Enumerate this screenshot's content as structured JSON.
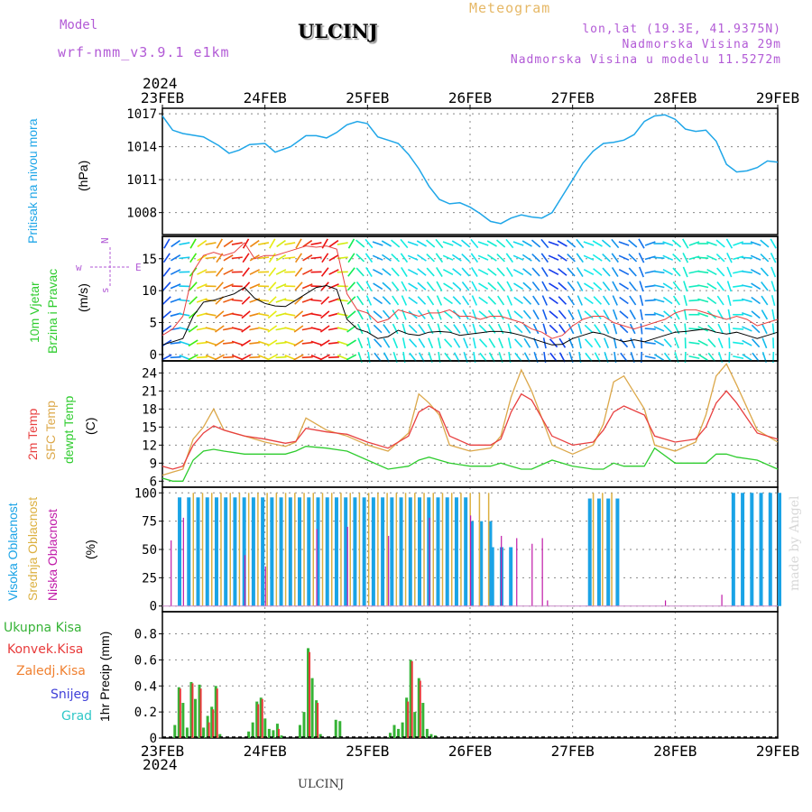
{
  "header": {
    "model_label": "Model",
    "model_value": "wrf-nmm_v3.9.1 e1km",
    "title": "ULCINJ",
    "subtitle": "Meteogram",
    "coords": "lon,lat (19.3E, 41.9375N)",
    "altitude": "Nadmorska Visina 29m",
    "model_altitude": "Nadmorska Visina u modelu 11.5272m"
  },
  "footer": {
    "station": "ULCINJ",
    "credit": "made by Angel"
  },
  "colors": {
    "pressure": "#1fa6e8",
    "temp": "#e84040",
    "sfc_temp": "#dca84a",
    "dewpt": "#2ecc2e",
    "cloud_high": "#1aa3e6",
    "cloud_mid": "#dcb040",
    "cloud_low": "#c01aa8",
    "precip_total": "#36b336",
    "precip_conv": "#e83a3a",
    "wind_speed": "#000000",
    "gust": "#e84040"
  },
  "chart_data": [
    {
      "type": "line",
      "panel": "pressure",
      "ylabel_left": "Pritisak na nivou mora",
      "ylabel": "(hPa)",
      "x_ticks": [
        "23FEB",
        "24FEB",
        "25FEB",
        "26FEB",
        "27FEB",
        "28FEB",
        "29FEB"
      ],
      "x_year": "2024",
      "y_ticks": [
        1008,
        1011,
        1014,
        1017
      ],
      "ylim": [
        1006,
        1017.5
      ],
      "xlim": [
        0,
        6
      ],
      "grid": true,
      "series": [
        {
          "x": [
            0,
            0.1,
            0.2,
            0.4,
            0.55,
            0.65,
            0.75,
            0.85,
            1.0,
            1.1,
            1.25,
            1.4,
            1.5,
            1.6,
            1.7,
            1.8,
            1.9,
            2.0,
            2.1,
            2.2,
            2.3,
            2.4,
            2.5,
            2.6,
            2.7,
            2.8,
            2.9,
            3.0,
            3.1,
            3.2,
            3.3,
            3.4,
            3.5,
            3.6,
            3.7,
            3.8,
            3.9,
            4.0,
            4.1,
            4.2,
            4.3,
            4.4,
            4.5,
            4.6,
            4.7,
            4.8,
            4.9,
            5.0,
            5.1,
            5.2,
            5.3,
            5.4,
            5.5,
            5.6,
            5.7,
            5.8,
            5.9,
            6.0
          ],
          "y": [
            1016.8,
            1015.5,
            1015.2,
            1014.9,
            1014.1,
            1013.4,
            1013.7,
            1014.2,
            1014.3,
            1013.5,
            1014.0,
            1015.0,
            1015.0,
            1014.8,
            1015.3,
            1016.0,
            1016.3,
            1016.1,
            1014.9,
            1014.6,
            1014.3,
            1013.3,
            1012.0,
            1010.4,
            1009.2,
            1008.8,
            1008.9,
            1008.5,
            1007.9,
            1007.2,
            1007.0,
            1007.5,
            1007.8,
            1007.6,
            1007.5,
            1008.0,
            1009.5,
            1011.0,
            1012.5,
            1013.6,
            1014.3,
            1014.4,
            1014.6,
            1015.1,
            1016.3,
            1016.8,
            1016.9,
            1016.5,
            1015.6,
            1015.4,
            1015.5,
            1014.5,
            1012.4,
            1011.7,
            1011.8,
            1012.1,
            1012.7,
            1012.6
          ]
        }
      ]
    },
    {
      "type": "line",
      "panel": "wind",
      "ylabel_left": "10m Vjetar",
      "ylabel_left2": "Brzina i Pravac",
      "ylabel": "(m/s)",
      "compass": {
        "n": "N",
        "e": "E",
        "w": "w",
        "s": "s"
      },
      "y_ticks": [
        0,
        5,
        10,
        15
      ],
      "ylim": [
        -1,
        18.5
      ],
      "xlim": [
        0,
        6
      ],
      "grid": true,
      "series": [
        {
          "name": "speed",
          "x": [
            0,
            0.1,
            0.2,
            0.3,
            0.4,
            0.5,
            0.6,
            0.7,
            0.8,
            0.9,
            1.0,
            1.1,
            1.2,
            1.3,
            1.4,
            1.5,
            1.6,
            1.7,
            1.8,
            1.9,
            2.0,
            2.1,
            2.2,
            2.3,
            2.4,
            2.5,
            2.6,
            2.7,
            2.8,
            2.9,
            3.0,
            3.1,
            3.2,
            3.3,
            3.4,
            3.5,
            3.6,
            3.7,
            3.8,
            3.9,
            4.0,
            4.1,
            4.2,
            4.3,
            4.4,
            4.5,
            4.6,
            4.7,
            4.8,
            4.9,
            5.0,
            5.1,
            5.2,
            5.3,
            5.4,
            5.5,
            5.6,
            5.7,
            5.8,
            5.9,
            6.0
          ],
          "y": [
            1.5,
            2.0,
            2.5,
            6.0,
            8.2,
            8.5,
            9.0,
            9.5,
            10.5,
            8.8,
            8.0,
            7.6,
            7.5,
            8.5,
            9.5,
            10.5,
            10.8,
            10.2,
            5.5,
            4.0,
            3.5,
            2.5,
            2.8,
            3.8,
            3.2,
            3.0,
            3.5,
            3.6,
            3.5,
            3.0,
            3.2,
            3.4,
            3.6,
            3.6,
            3.4,
            3.0,
            2.5,
            2.0,
            1.5,
            1.6,
            2.5,
            3.0,
            3.5,
            3.2,
            2.5,
            2.0,
            2.3,
            2.0,
            2.5,
            3.0,
            3.5,
            3.6,
            3.8,
            4.0,
            3.5,
            3.2,
            3.5,
            3.0,
            2.5,
            3.0,
            3.5
          ]
        },
        {
          "name": "gust",
          "x": [
            0,
            0.1,
            0.2,
            0.3,
            0.4,
            0.5,
            0.6,
            0.7,
            0.8,
            0.9,
            1.0,
            1.1,
            1.2,
            1.3,
            1.4,
            1.5,
            1.6,
            1.7,
            1.8,
            1.9,
            2.0,
            2.1,
            2.2,
            2.3,
            2.4,
            2.5,
            2.6,
            2.7,
            2.8,
            2.9,
            3.0,
            3.1,
            3.2,
            3.3,
            3.4,
            3.5,
            3.6,
            3.7,
            3.8,
            3.9,
            4.0,
            4.1,
            4.2,
            4.3,
            4.4,
            4.5,
            4.6,
            4.7,
            4.8,
            4.9,
            5.0,
            5.1,
            5.2,
            5.3,
            5.4,
            5.5,
            5.6,
            5.7,
            5.8,
            5.9,
            6.0
          ],
          "y": [
            3,
            4,
            6,
            13,
            15.5,
            16,
            15.5,
            16,
            17.5,
            15,
            15.5,
            15.5,
            16,
            16.5,
            17,
            16.8,
            17.0,
            16.5,
            9.5,
            7.0,
            6.5,
            5.0,
            5.5,
            7.0,
            6.5,
            6.0,
            6.5,
            6.5,
            7.0,
            6.0,
            6.0,
            5.5,
            6.0,
            6.0,
            5.5,
            5.0,
            4.0,
            3.5,
            2.5,
            3.0,
            4.5,
            5.5,
            6.0,
            6.0,
            5.0,
            4.5,
            4.0,
            4.5,
            5.0,
            5.5,
            6.5,
            7.0,
            7.0,
            6.5,
            6.0,
            5.5,
            6.0,
            5.5,
            4.5,
            5.0,
            5.5
          ]
        }
      ]
    },
    {
      "type": "line",
      "panel": "temperature",
      "ylabel_left": "2m Temp",
      "ylabel_left2": "SFC Temp",
      "ylabel_left3": "dewpt Temp",
      "ylabel": "(C)",
      "y_ticks": [
        6,
        9,
        12,
        15,
        18,
        21,
        24
      ],
      "ylim": [
        5,
        26
      ],
      "xlim": [
        0,
        6
      ],
      "grid": true,
      "series": [
        {
          "name": "2m Temp",
          "x": [
            0,
            0.1,
            0.2,
            0.3,
            0.4,
            0.5,
            0.6,
            0.8,
            1.0,
            1.2,
            1.3,
            1.4,
            1.6,
            1.8,
            2.0,
            2.2,
            2.4,
            2.5,
            2.6,
            2.7,
            2.8,
            3.0,
            3.2,
            3.3,
            3.4,
            3.5,
            3.6,
            3.8,
            4.0,
            4.2,
            4.3,
            4.4,
            4.5,
            4.7,
            4.8,
            5.0,
            5.2,
            5.3,
            5.4,
            5.5,
            5.6,
            5.8,
            6.0
          ],
          "y": [
            8.5,
            8.0,
            8.5,
            12.0,
            14.0,
            15.2,
            14.5,
            13.5,
            13.0,
            12.3,
            12.6,
            14.8,
            14.2,
            13.8,
            12.5,
            11.5,
            13.5,
            17.5,
            18.5,
            17.5,
            13.5,
            12.0,
            12.0,
            13.0,
            17.5,
            20.5,
            19.5,
            13.5,
            12.0,
            12.5,
            14.5,
            17.5,
            18.5,
            17.0,
            13.5,
            12.5,
            13.0,
            15.0,
            19.0,
            21.0,
            19.0,
            14.0,
            13.0
          ]
        },
        {
          "name": "SFC Temp",
          "x": [
            0,
            0.1,
            0.2,
            0.3,
            0.4,
            0.5,
            0.6,
            0.8,
            1.0,
            1.2,
            1.3,
            1.4,
            1.6,
            1.8,
            2.0,
            2.2,
            2.4,
            2.5,
            2.6,
            2.7,
            2.8,
            3.0,
            3.2,
            3.3,
            3.4,
            3.5,
            3.6,
            3.8,
            4.0,
            4.2,
            4.3,
            4.4,
            4.5,
            4.7,
            4.8,
            5.0,
            5.2,
            5.3,
            5.4,
            5.5,
            5.6,
            5.8,
            6.0
          ],
          "y": [
            7.0,
            7.5,
            8.0,
            13.0,
            15.0,
            18.0,
            14.5,
            13.5,
            12.5,
            11.8,
            12.5,
            16.5,
            14.5,
            13.5,
            12.0,
            11.0,
            14.0,
            20.5,
            19.0,
            17.0,
            12.0,
            11.0,
            11.5,
            13.5,
            20.0,
            24.5,
            21.0,
            12.0,
            10.5,
            12.0,
            15.5,
            22.5,
            23.5,
            18.0,
            12.0,
            11.0,
            12.5,
            17.0,
            23.5,
            25.5,
            22.0,
            14.5,
            12.5
          ]
        },
        {
          "name": "dewpt Temp",
          "x": [
            0,
            0.1,
            0.2,
            0.3,
            0.4,
            0.5,
            0.6,
            0.8,
            1.0,
            1.2,
            1.3,
            1.4,
            1.6,
            1.8,
            2.0,
            2.2,
            2.4,
            2.5,
            2.6,
            2.7,
            2.8,
            3.0,
            3.2,
            3.3,
            3.4,
            3.5,
            3.6,
            3.8,
            4.0,
            4.2,
            4.3,
            4.4,
            4.5,
            4.7,
            4.8,
            5.0,
            5.2,
            5.3,
            5.4,
            5.5,
            5.6,
            5.8,
            6.0
          ],
          "y": [
            6.5,
            6.0,
            6.0,
            9.5,
            11.0,
            11.3,
            11.0,
            10.5,
            10.5,
            10.5,
            11.0,
            11.8,
            11.5,
            11.0,
            9.5,
            8.0,
            8.5,
            9.5,
            10.0,
            9.5,
            9.0,
            8.5,
            8.5,
            9.0,
            8.5,
            8.0,
            8.0,
            9.5,
            8.5,
            8.0,
            8.0,
            9.0,
            8.5,
            8.5,
            11.5,
            9.0,
            9.0,
            9.0,
            10.5,
            10.5,
            10.0,
            9.5,
            8.0
          ]
        }
      ]
    },
    {
      "type": "bar",
      "panel": "clouds",
      "ylabel_left": "Visoka Oblacnost",
      "ylabel_left2": "Srednja Oblacnost",
      "ylabel_left3": "Niska Oblacnost",
      "ylabel": "(%)",
      "y_ticks": [
        0,
        25,
        50,
        75,
        100
      ],
      "ylim": [
        -5,
        105
      ],
      "xlim": [
        0,
        6
      ],
      "grid": true,
      "series": [
        {
          "name": "Visoka Oblacnost",
          "segments": [
            [
              0.15,
              2.95,
              96
            ],
            [
              3.0,
              3.2,
              75
            ],
            [
              3.2,
              3.45,
              52
            ],
            [
              4.15,
              4.45,
              95
            ],
            [
              5.55,
              6.0,
              100
            ]
          ]
        },
        {
          "name": "Srednja Oblacnost",
          "segments": [
            [
              0.25,
              3.2,
              100
            ],
            [
              4.15,
              4.45,
              100
            ]
          ]
        },
        {
          "name": "Niska Oblacnost",
          "spikes": [
            [
              0.08,
              58
            ],
            [
              0.2,
              78
            ],
            [
              0.8,
              45
            ],
            [
              1.0,
              35
            ],
            [
              1.5,
              68
            ],
            [
              1.8,
              70
            ],
            [
              2.2,
              62
            ],
            [
              2.6,
              78
            ],
            [
              3.0,
              80
            ],
            [
              3.3,
              62
            ],
            [
              3.45,
              60
            ],
            [
              3.6,
              55
            ],
            [
              3.7,
              60
            ],
            [
              3.75,
              5
            ],
            [
              4.9,
              5
            ],
            [
              5.45,
              10
            ]
          ]
        }
      ]
    },
    {
      "type": "bar",
      "panel": "precipitation",
      "ylabel": "1hr Precip (mm)",
      "legend": [
        "Ukupna Kisa",
        "Konvek.Kisa",
        "Zaledj.Kisa",
        "Snijeg",
        "Grad"
      ],
      "legend_colors": [
        "#36b336",
        "#e83a3a",
        "#f08030",
        "#4040d8",
        "#30c8c8"
      ],
      "y_ticks": [
        0,
        0.2,
        0.4,
        0.6,
        0.8
      ],
      "y_tick_labels": [
        "0",
        "0.2",
        "0.4",
        "0.6",
        "0.8"
      ],
      "ylim": [
        0,
        0.97
      ],
      "xlim": [
        0,
        6
      ],
      "grid": true,
      "x": [
        0.13,
        0.17,
        0.21,
        0.25,
        0.29,
        0.33,
        0.37,
        0.41,
        0.45,
        0.49,
        0.53,
        0.57,
        0.85,
        0.89,
        0.93,
        0.97,
        1.01,
        1.05,
        1.09,
        1.13,
        1.17,
        1.35,
        1.39,
        1.43,
        1.47,
        1.51,
        1.55,
        1.7,
        1.74,
        2.23,
        2.27,
        2.31,
        2.35,
        2.39,
        2.43,
        2.47,
        2.51,
        2.55,
        2.59,
        2.63,
        2.67
      ],
      "total": [
        0.1,
        0.39,
        0.27,
        0.08,
        0.43,
        0.3,
        0.41,
        0.08,
        0.17,
        0.24,
        0.4,
        0.03,
        0.05,
        0.12,
        0.28,
        0.31,
        0.15,
        0.07,
        0.06,
        0.11,
        0.02,
        0.1,
        0.2,
        0.69,
        0.46,
        0.29,
        0.03,
        0.14,
        0.13,
        0.04,
        0.1,
        0.07,
        0.12,
        0.31,
        0.6,
        0.2,
        0.46,
        0.27,
        0.07,
        0.03,
        0.02
      ],
      "convective": [
        0,
        0.38,
        0,
        0,
        0.42,
        0,
        0.38,
        0,
        0.12,
        0.22,
        0.38,
        0,
        0,
        0,
        0.26,
        0.3,
        0,
        0,
        0,
        0.07,
        0,
        0,
        0,
        0.66,
        0,
        0.27,
        0,
        0,
        0,
        0,
        0,
        0,
        0,
        0.28,
        0.59,
        0,
        0.44,
        0,
        0,
        0,
        0
      ]
    }
  ]
}
